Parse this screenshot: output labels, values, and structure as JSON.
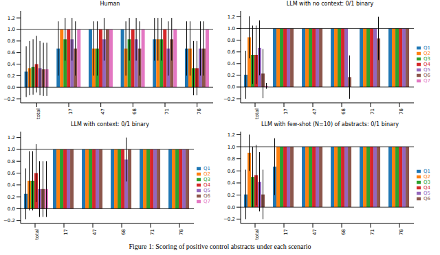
{
  "caption": "Figure 1: Scoring of positive control abstracts under each scenario",
  "chart_data": [
    {
      "type": "bar",
      "title": "Human",
      "categories": [
        "total",
        "17",
        "47",
        "68",
        "71",
        "78"
      ],
      "series": [
        {
          "name": "Q1",
          "color": "#1f77b4",
          "values": [
            0.27,
            0.67,
            1,
            1,
            0.83,
            0.67
          ],
          "errors": [
            0.44,
            0.47,
            0,
            0,
            0.37,
            0.47
          ]
        },
        {
          "name": "Q2",
          "color": "#ff7f0e",
          "values": [
            0.33,
            1,
            0.67,
            0.67,
            0.83,
            0.67
          ],
          "errors": [
            0.47,
            0,
            0.47,
            0.47,
            0.37,
            0.47
          ]
        },
        {
          "name": "Q3",
          "color": "#2ca02c",
          "values": [
            0.35,
            0.83,
            0.67,
            0.83,
            0.83,
            0.33
          ],
          "errors": [
            0.48,
            0.37,
            0.47,
            0.37,
            0.37,
            0.47
          ]
        },
        {
          "name": "Q4",
          "color": "#d62728",
          "values": [
            0.4,
            1,
            1,
            1,
            1,
            0.33
          ],
          "errors": [
            0.49,
            0,
            0,
            0,
            0,
            0.47
          ]
        },
        {
          "name": "Q5",
          "color": "#9467bd",
          "values": [
            0.33,
            0.83,
            0.83,
            0.83,
            0.67,
            0.67
          ],
          "errors": [
            0.47,
            0.37,
            0.37,
            0.37,
            0.47,
            0.47
          ]
        },
        {
          "name": "Q6",
          "color": "#8c564b",
          "values": [
            0.31,
            0.67,
            1,
            0.67,
            0.83,
            0.67
          ],
          "errors": [
            0.46,
            0.47,
            0,
            0.47,
            0.37,
            0.47
          ]
        },
        {
          "name": "Q7",
          "color": "#e377c2",
          "values": [
            0.31,
            1,
            1,
            1,
            1,
            1
          ],
          "errors": [
            0.46,
            0,
            0,
            0,
            0,
            0
          ]
        }
      ],
      "ylim": [
        -0.27,
        1.32
      ],
      "yticks": [
        {
          "value": -0.2,
          "label": "−0.2"
        },
        {
          "value": 0,
          "label": "0.0"
        },
        0.2,
        0.4,
        0.6,
        0.8,
        {
          "value": 1,
          "label": "1.0"
        },
        1.2
      ],
      "hlines": [
        0,
        1
      ]
    },
    {
      "type": "bar",
      "title": "LLM with no context: 0/1 binary",
      "categories": [
        "total",
        "17",
        "47",
        "68",
        "71",
        "78"
      ],
      "series": [
        {
          "name": "Q1",
          "color": "#1f77b4",
          "values": [
            0.21,
            1,
            1,
            1,
            1,
            1
          ],
          "errors": [
            0.41,
            0,
            0,
            0,
            0,
            0
          ]
        },
        {
          "name": "Q2",
          "color": "#ff7f0e",
          "values": [
            0.85,
            1,
            1,
            1,
            1,
            1
          ],
          "errors": [
            0.36,
            0,
            0,
            0,
            0,
            0
          ]
        },
        {
          "name": "Q3",
          "color": "#2ca02c",
          "values": [
            0.55,
            1,
            1,
            1,
            1,
            1
          ],
          "errors": [
            0.5,
            0,
            0,
            0,
            0,
            0
          ]
        },
        {
          "name": "Q4",
          "color": "#d62728",
          "values": [
            0.55,
            1,
            1,
            1,
            1,
            1
          ],
          "errors": [
            0.5,
            0,
            0,
            0,
            0,
            0
          ]
        },
        {
          "name": "Q5",
          "color": "#9467bd",
          "values": [
            0.67,
            1,
            1,
            1,
            1,
            1
          ],
          "errors": [
            0.47,
            0,
            0,
            0,
            0,
            0
          ]
        },
        {
          "name": "Q6",
          "color": "#8c564b",
          "values": [
            0.23,
            1,
            1,
            0.17,
            0.83,
            1
          ],
          "errors": [
            0.42,
            0,
            0,
            0.37,
            0.37,
            0
          ]
        },
        {
          "name": "Q7",
          "color": "#e377c2",
          "values": [
            0.02,
            null,
            null,
            null,
            null,
            null
          ],
          "errors": [
            0.05,
            null,
            null,
            null,
            null,
            null
          ]
        }
      ],
      "ylim": [
        -0.27,
        1.3
      ],
      "yticks": [
        {
          "value": -0.2,
          "label": "−0.2"
        },
        {
          "value": 0,
          "label": "0.0"
        },
        0.2,
        0.4,
        0.6,
        0.8,
        {
          "value": 1,
          "label": "1.0"
        },
        1.2
      ],
      "hlines": [
        0,
        1
      ],
      "legend": "right"
    },
    {
      "type": "bar",
      "title": "LLM with context: 0/1 binary",
      "categories": [
        "total",
        "17",
        "47",
        "68",
        "71",
        "78"
      ],
      "series": [
        {
          "name": "Q1",
          "color": "#1f77b4",
          "values": [
            0.25,
            1,
            1,
            1,
            1,
            1
          ],
          "errors": [
            0.43,
            0,
            0,
            0,
            0,
            0
          ]
        },
        {
          "name": "Q2",
          "color": "#ff7f0e",
          "values": [
            0.47,
            1,
            1,
            1,
            1,
            1
          ],
          "errors": [
            0.5,
            0,
            0,
            0,
            0,
            0
          ]
        },
        {
          "name": "Q3",
          "color": "#2ca02c",
          "values": [
            0.47,
            1,
            1,
            1,
            1,
            1
          ],
          "errors": [
            0.5,
            0,
            0,
            0,
            0,
            0
          ]
        },
        {
          "name": "Q4",
          "color": "#d62728",
          "values": [
            0.6,
            1,
            1,
            1,
            1,
            1
          ],
          "errors": [
            0.49,
            0,
            0,
            0,
            0,
            0
          ]
        },
        {
          "name": "Q5",
          "color": "#9467bd",
          "values": [
            0.33,
            1,
            1,
            0.83,
            1,
            1
          ],
          "errors": [
            0.47,
            0,
            0,
            0.37,
            0,
            0
          ]
        },
        {
          "name": "Q6",
          "color": "#8c564b",
          "values": [
            0.33,
            1,
            1,
            1,
            1,
            1
          ],
          "errors": [
            0.47,
            0,
            0,
            0,
            0,
            0
          ]
        },
        {
          "name": "Q7",
          "color": "#e377c2",
          "values": [
            0.33,
            null,
            null,
            null,
            null,
            null
          ],
          "errors": [
            0.47,
            null,
            null,
            null,
            null,
            null
          ]
        }
      ],
      "ylim": [
        -0.25,
        1.3
      ],
      "yticks": [
        {
          "value": -0.2,
          "label": "−0.2"
        },
        {
          "value": 0,
          "label": "0.0"
        },
        0.2,
        0.4,
        0.6,
        0.8,
        {
          "value": 1,
          "label": "1.0"
        },
        1.2
      ],
      "hlines": [
        0,
        1
      ],
      "legend": "right"
    },
    {
      "type": "bar",
      "title": "LLM with few-shot (N=10) of abstracts: 0/1 binary",
      "categories": [
        "total",
        "17",
        "47",
        "68",
        "71",
        "78"
      ],
      "series": [
        {
          "name": "Q1",
          "color": "#1f77b4",
          "values": [
            0.21,
            0.67,
            1,
            1,
            1,
            1
          ],
          "errors": [
            0.41,
            0.47,
            0,
            0,
            0,
            0
          ]
        },
        {
          "name": "Q2",
          "color": "#ff7f0e",
          "values": [
            0.9,
            1,
            1,
            1,
            1,
            1
          ],
          "errors": [
            0.3,
            0,
            0,
            0,
            0,
            0
          ]
        },
        {
          "name": "Q3",
          "color": "#2ca02c",
          "values": [
            0.5,
            1,
            1,
            1,
            1,
            1
          ],
          "errors": [
            0.5,
            0,
            0,
            0,
            0,
            0
          ]
        },
        {
          "name": "Q4",
          "color": "#d62728",
          "values": [
            0.53,
            1,
            1,
            1,
            1,
            1
          ],
          "errors": [
            0.5,
            0,
            0,
            0,
            0,
            0
          ]
        },
        {
          "name": "Q5",
          "color": "#9467bd",
          "values": [
            0.42,
            1,
            1,
            1,
            1,
            1
          ],
          "errors": [
            0.49,
            0,
            0,
            0,
            0,
            0
          ]
        },
        {
          "name": "Q6",
          "color": "#8c564b",
          "values": [
            0.21,
            1,
            1,
            1,
            1,
            1
          ],
          "errors": [
            0.41,
            0,
            0,
            0,
            0,
            0
          ]
        }
      ],
      "ylim": [
        -0.27,
        1.25
      ],
      "yticks": [
        {
          "value": -0.2,
          "label": "−0.2"
        },
        {
          "value": 0,
          "label": "0.0"
        },
        0.2,
        0.4,
        0.6,
        0.8,
        {
          "value": 1,
          "label": "1.0"
        },
        1.2
      ],
      "hlines": [
        0,
        1
      ],
      "legend": "right"
    }
  ]
}
